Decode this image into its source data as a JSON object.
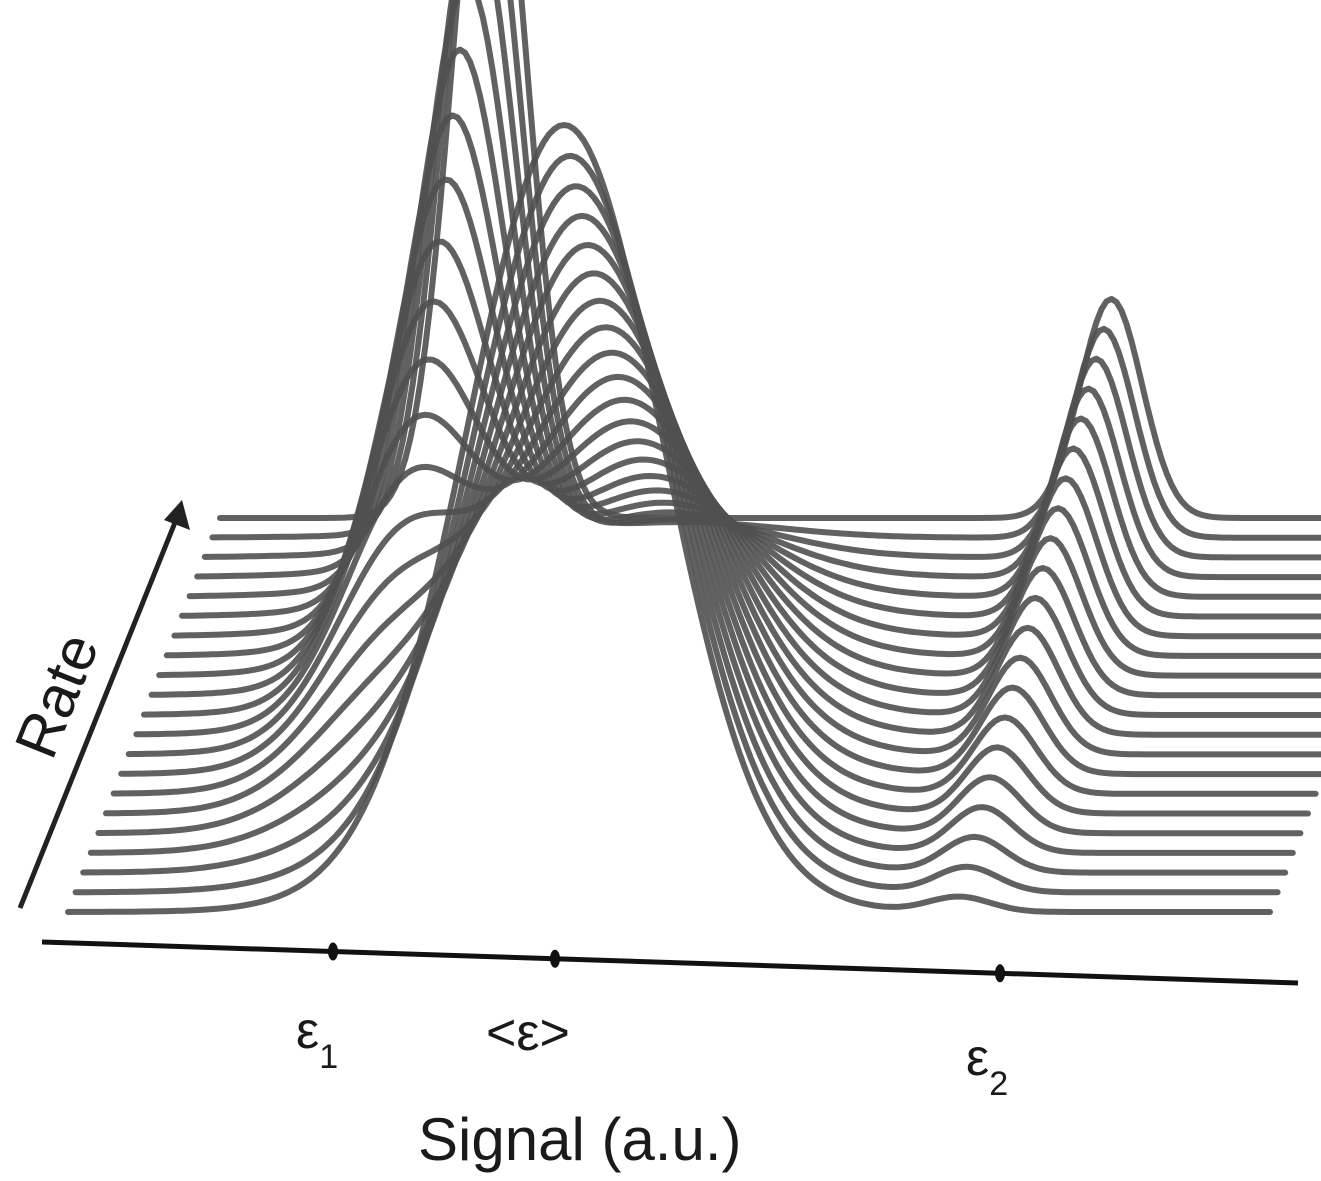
{
  "chart_data": {
    "type": "line",
    "style": "waterfall",
    "xlabel": "Signal (a.u.)",
    "ylabel": "Rate",
    "x_tick_labels": [
      {
        "base": "ε",
        "sub": "1"
      },
      {
        "base": "<ε>",
        "sub": ""
      },
      {
        "base": "ε",
        "sub": "2"
      }
    ],
    "x_ticks_value": [
      1.0,
      2.0,
      4.0
    ],
    "xlim": [
      -0.3,
      5.5
    ],
    "ylim": [
      0,
      1
    ],
    "trace_count": 21,
    "series_model": {
      "eps1": 1.0,
      "eps_mean": 2.0,
      "eps2": 4.0,
      "sigma_narrow": 0.18,
      "sigma_mean": 0.45,
      "sigma_eps2": 0.15,
      "eps2_height": 0.17,
      "description_rate": "slow rate at back: sharp peak at eps1 plus peak at eps2; fast rate at front: single peak at <eps>"
    },
    "colors": {
      "trace": "#505050",
      "axis": "#111111"
    },
    "grid": false
  }
}
